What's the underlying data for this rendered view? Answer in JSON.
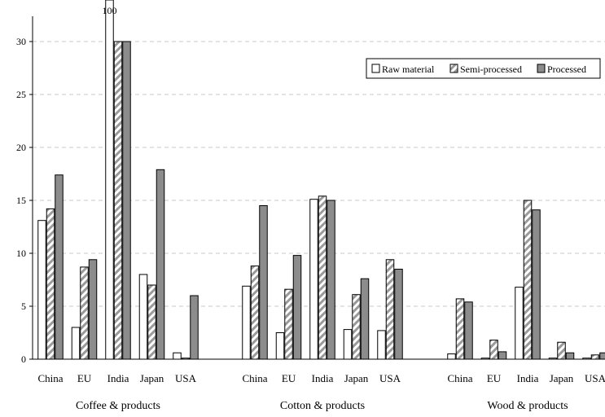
{
  "chart_data": {
    "type": "bar",
    "ylim": [
      0,
      32
    ],
    "y_ticks": [
      0,
      5,
      10,
      15,
      20,
      25,
      30
    ],
    "grid": "horizontal dashed",
    "legend_position": "top-right",
    "groups": [
      {
        "label": "Coffee & products",
        "categories": [
          "China",
          "EU",
          "India",
          "Japan",
          "USA"
        ]
      },
      {
        "label": "Cotton & products",
        "categories": [
          "China",
          "EU",
          "India",
          "Japan",
          "USA"
        ]
      },
      {
        "label": "Wood & products",
        "categories": [
          "China",
          "EU",
          "India",
          "Japan",
          "USA"
        ]
      }
    ],
    "series": [
      {
        "name": "Raw material",
        "color": "#ffffff",
        "pattern": "solid",
        "values": [
          [
            13.1,
            3.0,
            100,
            8.0,
            0.6
          ],
          [
            6.9,
            2.5,
            15.1,
            2.8,
            2.7
          ],
          [
            0.5,
            0.1,
            6.8,
            0.1,
            0.1
          ]
        ]
      },
      {
        "name": "Semi-processed",
        "color": "#bdbdbd",
        "pattern": "diagonal-hatch",
        "values": [
          [
            14.2,
            8.7,
            30.0,
            7.0,
            0.1
          ],
          [
            8.8,
            6.6,
            15.4,
            6.1,
            9.4
          ],
          [
            5.7,
            1.8,
            15.0,
            1.6,
            0.4
          ]
        ]
      },
      {
        "name": "Processed",
        "color": "#8c8c8c",
        "pattern": "solid",
        "values": [
          [
            17.4,
            9.4,
            30.0,
            17.9,
            6.0
          ],
          [
            14.5,
            9.8,
            15.0,
            7.6,
            8.5
          ],
          [
            5.4,
            0.7,
            14.1,
            0.6,
            0.6
          ]
        ]
      }
    ],
    "annotations": [
      {
        "text": "100",
        "group": 0,
        "category": 2
      }
    ]
  }
}
